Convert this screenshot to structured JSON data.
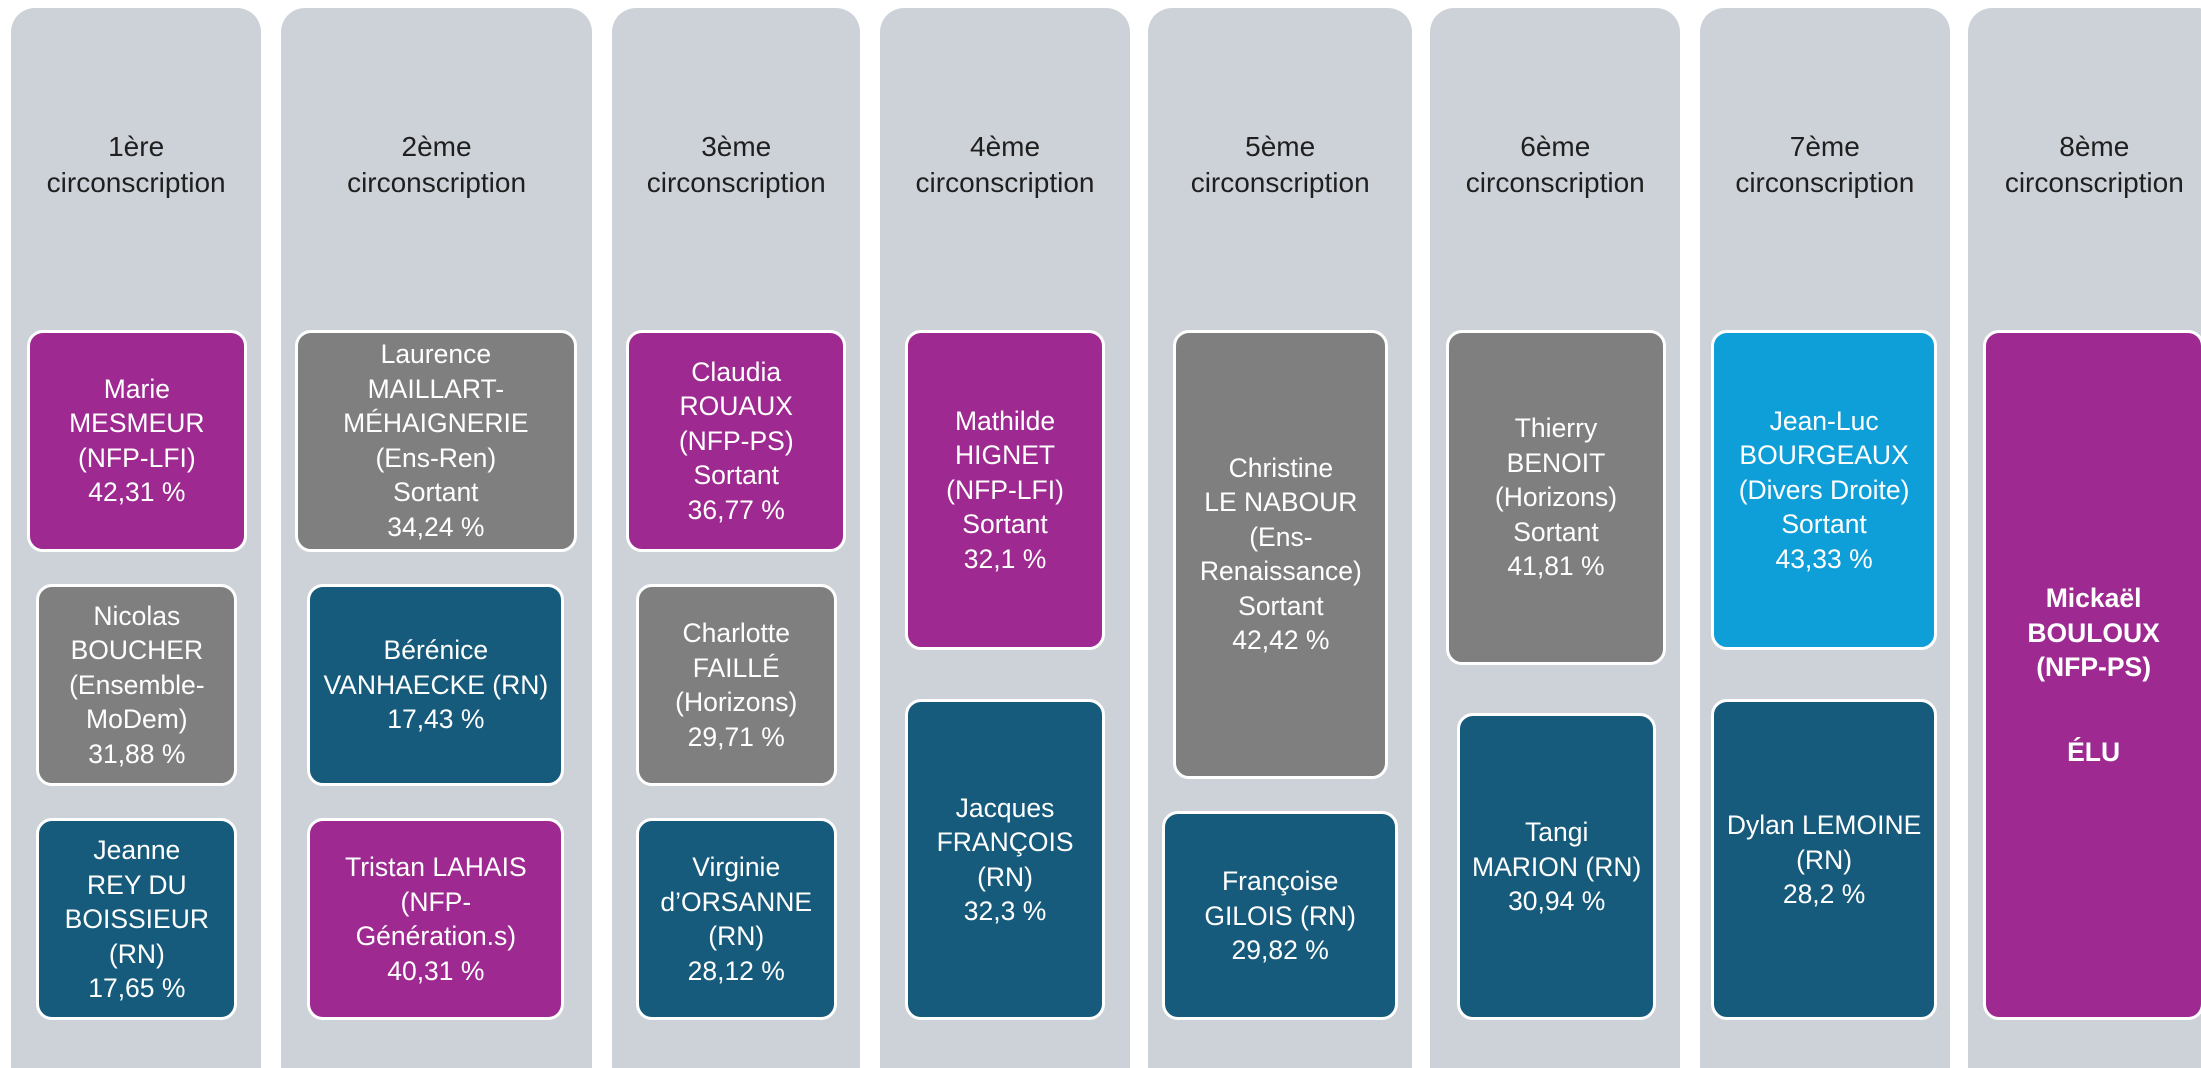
{
  "columns": [
    {
      "title": [
        "1ère",
        "circonscription"
      ],
      "boxes": [
        {
          "color": "#9e2a91",
          "lines": [
            "Marie",
            "MESMEUR",
            "(NFP-LFI)",
            "42,31 %"
          ]
        },
        {
          "color": "#7f7f7f",
          "lines": [
            "Nicolas",
            "BOUCHER",
            "(Ensemble-",
            "MoDem)",
            "31,88 %"
          ]
        },
        {
          "color": "#165b7c",
          "lines": [
            "Jeanne",
            "REY DU",
            "BOISSIEUR",
            "(RN)",
            "17,65 %"
          ]
        }
      ]
    },
    {
      "title": [
        "2ème",
        "circonscription"
      ],
      "boxes": [
        {
          "color": "#7f7f7f",
          "lines": [
            "Laurence",
            "MAILLART-",
            "MÉHAIGNERIE",
            "(Ens-Ren)",
            "Sortant",
            "34,24 %"
          ]
        },
        {
          "color": "#165b7c",
          "lines": [
            "Bérénice",
            "VANHAECKE (RN)",
            "17,43 %"
          ]
        },
        {
          "color": "#9e2a91",
          "lines": [
            "Tristan LAHAIS",
            "(NFP-",
            "Génération.s)",
            "40,31 %"
          ]
        }
      ]
    },
    {
      "title": [
        "3ème",
        "circonscription"
      ],
      "boxes": [
        {
          "color": "#9e2a91",
          "lines": [
            "Claudia",
            "ROUAUX",
            "(NFP-PS)",
            "Sortant",
            "36,77 %"
          ]
        },
        {
          "color": "#7f7f7f",
          "lines": [
            "Charlotte",
            "FAILLÉ",
            "(Horizons)",
            "29,71 %"
          ]
        },
        {
          "color": "#165b7c",
          "lines": [
            "Virginie",
            "d’ORSANNE",
            "(RN)",
            "28,12 %"
          ]
        }
      ]
    },
    {
      "title": [
        "4ème",
        "circonscription"
      ],
      "boxes": [
        {
          "color": "#9e2a91",
          "lines": [
            "Mathilde",
            "HIGNET",
            "(NFP-LFI)",
            "Sortant",
            "32,1 %"
          ]
        },
        {
          "color": "#165b7c",
          "lines": [
            "Jacques",
            "FRANÇOIS",
            "(RN)",
            "32,3 %"
          ]
        }
      ]
    },
    {
      "title": [
        "5ème",
        "circonscription"
      ],
      "boxes": [
        {
          "color": "#7f7f7f",
          "lines": [
            "Christine",
            "LE NABOUR",
            "(Ens-",
            "Renaissance)",
            "Sortant",
            "42,42 %"
          ]
        },
        {
          "color": "#165b7c",
          "lines": [
            "Françoise",
            "GILOIS (RN)",
            "29,82 %"
          ]
        }
      ]
    },
    {
      "title": [
        "6ème",
        "circonscription"
      ],
      "boxes": [
        {
          "color": "#7f7f7f",
          "lines": [
            "Thierry",
            "BENOIT",
            "(Horizons)",
            "Sortant",
            "41,81 %"
          ]
        },
        {
          "color": "#165b7c",
          "lines": [
            "Tangi",
            "MARION (RN)",
            "30,94 %"
          ]
        }
      ]
    },
    {
      "title": [
        "7ème",
        "circonscription"
      ],
      "boxes": [
        {
          "color": "#0f9fd8",
          "lines": [
            "Jean-Luc",
            "BOURGEAUX",
            "(Divers Droite)",
            "Sortant",
            "43,33 %"
          ]
        },
        {
          "color": "#165b7c",
          "lines": [
            "Dylan LEMOINE",
            "(RN)",
            "28,2 %"
          ]
        }
      ]
    },
    {
      "title": [
        "8ème",
        "circonscription"
      ],
      "boxes": [
        {
          "color": "#9e2a91",
          "bold": true,
          "lines": [
            "Mickaël",
            "BOULOUX",
            "(NFP-PS)"
          ],
          "status": "ÉLU"
        }
      ]
    }
  ]
}
